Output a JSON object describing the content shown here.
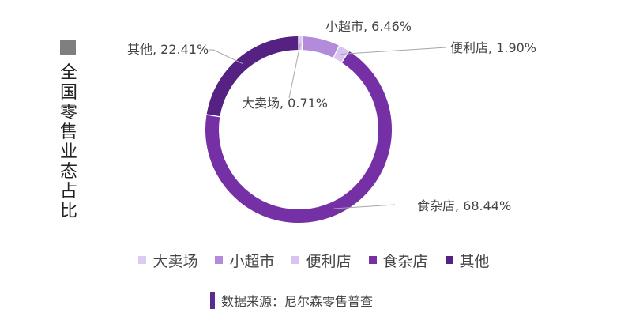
{
  "title": "全国零售业态占比",
  "source": "数据来源：尼尔森零售普查",
  "chart_data": {
    "type": "pie",
    "donut": true,
    "categories": [
      "大卖场",
      "小超市",
      "便利店",
      "食杂店",
      "其他"
    ],
    "values": [
      0.71,
      6.46,
      1.9,
      68.44,
      22.41
    ],
    "unit": "%",
    "colors": [
      "#dccaf3",
      "#b48bdb",
      "#d9c4f1",
      "#7530a5",
      "#552283"
    ],
    "data_labels": [
      "大卖场, 0.71%",
      "小超市, 6.46%",
      "便利店, 1.90%",
      "食杂店, 68.44%",
      "其他, 22.41%"
    ],
    "legend_position": "bottom"
  }
}
